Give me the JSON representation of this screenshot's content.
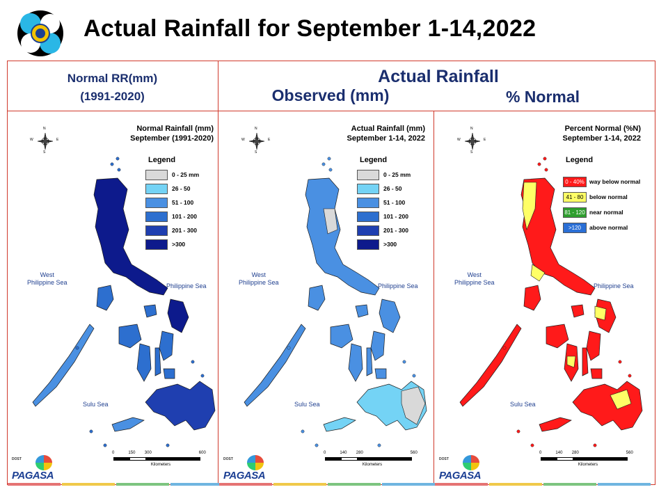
{
  "page": {
    "title": "Actual Rainfall for September 1-14,2022"
  },
  "headers": {
    "normal_line1": "Normal RR(mm)",
    "normal_line2": "(1991-2020)",
    "actual": "Actual Rainfall",
    "observed": "Observed (mm)",
    "percent": "% Normal"
  },
  "panels": [
    {
      "title_line1": "Normal Rainfall (mm)",
      "title_line2": "September (1991-2020)",
      "legend_title": "Legend",
      "legend": [
        {
          "label": "0 - 25 mm",
          "color": "#d9d9d9"
        },
        {
          "label": "26 - 50",
          "color": "#74d3f5"
        },
        {
          "label": "51 - 100",
          "color": "#4a90e2"
        },
        {
          "label": "101 - 200",
          "color": "#2d6fcf"
        },
        {
          "label": "201 - 300",
          "color": "#1f3fb0"
        },
        {
          "label": ">300",
          "color": "#0d1a8c"
        }
      ],
      "sea_west": "West\nPhilippine Sea",
      "sea_east": "Philippine Sea",
      "sea_south": "Sulu Sea",
      "scale_ticks": [
        "0",
        "150",
        "300",
        "600"
      ],
      "scale_unit": "Kilometers",
      "compass": {
        "n": "N",
        "s": "S",
        "e": "E",
        "w": "W"
      }
    },
    {
      "title_line1": "Actual Rainfall (mm)",
      "title_line2": "September 1-14, 2022",
      "legend_title": "Legend",
      "legend": [
        {
          "label": "0 - 25 mm",
          "color": "#d9d9d9"
        },
        {
          "label": "26 - 50",
          "color": "#74d3f5"
        },
        {
          "label": "51 - 100",
          "color": "#4a90e2"
        },
        {
          "label": "101 - 200",
          "color": "#2d6fcf"
        },
        {
          "label": "201 - 300",
          "color": "#1f3fb0"
        },
        {
          "label": ">300",
          "color": "#0d1a8c"
        }
      ],
      "sea_west": "West\nPhilippine Sea",
      "sea_east": "Philippine Sea",
      "sea_south": "Sulu Sea",
      "scale_ticks": [
        "0",
        "140",
        "280",
        "560"
      ],
      "scale_unit": "Kilometers",
      "compass": {
        "n": "N",
        "s": "S",
        "e": "E",
        "w": "W"
      }
    },
    {
      "title_line1": "Percent Normal (%N)",
      "title_line2": "September 1-14, 2022",
      "legend_title": "Legend",
      "legend": [
        {
          "code": "0 - 40%",
          "label": "way below normal",
          "color": "#ff1a1a"
        },
        {
          "code": "41 - 80",
          "label": "below normal",
          "color": "#ffff66"
        },
        {
          "code": "81 - 120",
          "label": "near normal",
          "color": "#2e9e2e"
        },
        {
          "code": ">120",
          "label": "above normal",
          "color": "#2a6fd6"
        }
      ],
      "sea_west": "West\nPhilippine Sea",
      "sea_east": "Philippine Sea",
      "sea_south": "Sulu Sea",
      "scale_ticks": [
        "0",
        "140",
        "280",
        "560"
      ],
      "scale_unit": "Kilometers",
      "compass": {
        "n": "N",
        "s": "S",
        "e": "E",
        "w": "W"
      }
    }
  ],
  "branding": {
    "dost": "DOST",
    "name": "PAGASA"
  },
  "stripe_colors": [
    "#e57373",
    "#f0c94a",
    "#7cc47f",
    "#6fb5e0"
  ],
  "map_palettes": {
    "normal": {
      "base": "#2d6fcf",
      "dark": "#1f3fb0",
      "darker": "#0d1a8c",
      "light": "#4a90e2"
    },
    "actual": {
      "base": "#4a90e2",
      "dark": "#2d6fcf",
      "light": "#74d3f5",
      "dry": "#d9d9d9"
    },
    "percent": {
      "base": "#ff1a1a",
      "yellow": "#ffff66"
    }
  }
}
